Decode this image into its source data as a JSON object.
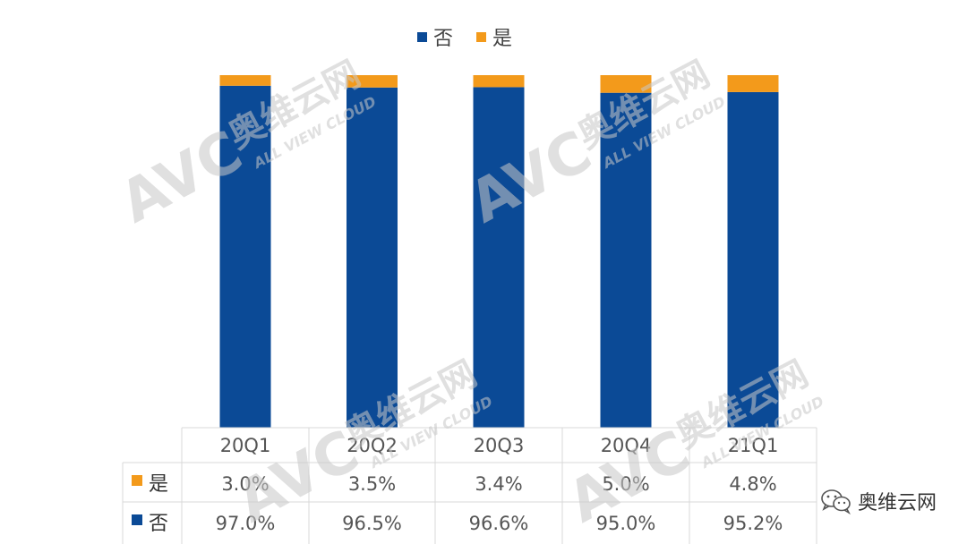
{
  "chart_data": {
    "type": "bar",
    "stacked": true,
    "percent_stacked": true,
    "categories": [
      "20Q1",
      "20Q2",
      "20Q3",
      "20Q4",
      "21Q1"
    ],
    "series": [
      {
        "name": "否",
        "color": "#0b4a96",
        "values": [
          97.0,
          96.5,
          96.6,
          95.0,
          95.2
        ],
        "labels": [
          "97.0%",
          "96.5%",
          "96.6%",
          "95.0%",
          "95.2%"
        ]
      },
      {
        "name": "是",
        "color": "#f39a1b",
        "values": [
          3.0,
          3.5,
          3.4,
          5.0,
          4.8
        ],
        "labels": [
          "3.0%",
          "3.5%",
          "3.4%",
          "5.0%",
          "4.8%"
        ]
      }
    ],
    "ylim": [
      0,
      100
    ],
    "legend_position": "top",
    "data_table": true,
    "grid": false
  },
  "watermark": {
    "logo_text": "AVC",
    "brand_text": "奥维云网",
    "sub_text": "ALL VIEW CLOUD"
  },
  "credit": {
    "icon": "wechat-icon",
    "text": "奥维云网"
  }
}
